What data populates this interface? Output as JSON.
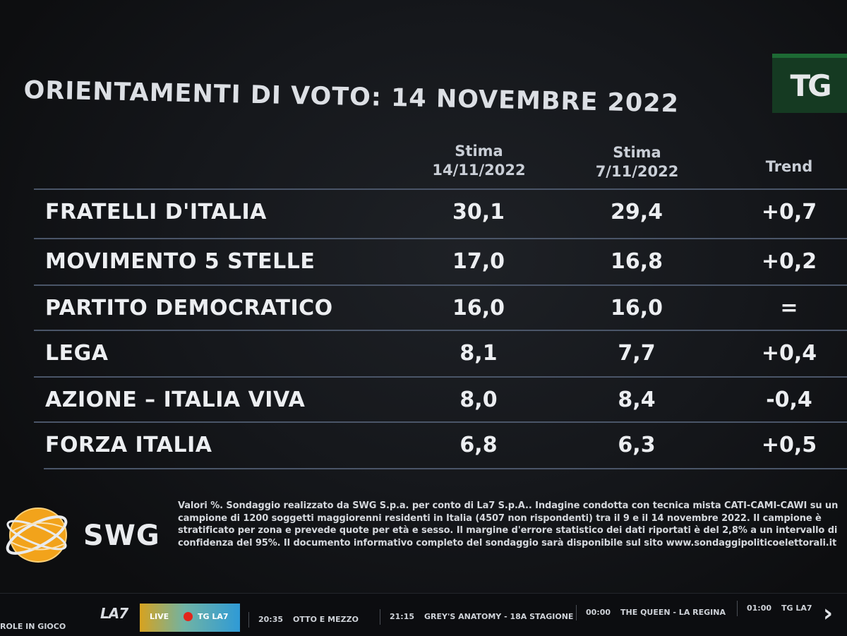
{
  "title": "ORIENTAMENTI DI VOTO: 14 NOVEMBRE 2022",
  "logo_text": "TG",
  "columns": {
    "current": {
      "line1": "Stima",
      "line2": "14/11/2022"
    },
    "previous": {
      "line1": "Stima",
      "line2": "7/11/2022"
    },
    "trend": "Trend"
  },
  "rows": [
    {
      "party": "FRATELLI D'ITALIA",
      "current": "30,1",
      "previous": "29,4",
      "trend": "+0,7"
    },
    {
      "party": "MOVIMENTO 5 STELLE",
      "current": "17,0",
      "previous": "16,8",
      "trend": "+0,2"
    },
    {
      "party": "PARTITO DEMOCRATICO",
      "current": "16,0",
      "previous": "16,0",
      "trend": "="
    },
    {
      "party": "LEGA",
      "current": "8,1",
      "previous": "7,7",
      "trend": "+0,4"
    },
    {
      "party": "AZIONE – ITALIA VIVA",
      "current": "8,0",
      "previous": "8,4",
      "trend": "-0,4"
    },
    {
      "party": "FORZA ITALIA",
      "current": "6,8",
      "previous": "6,3",
      "trend": "+0,5"
    }
  ],
  "source_logo_text": "SWG",
  "footnote": "Valori %. Sondaggio realizzato da SWG S.p.a. per conto di La7 S.p.A.. Indagine condotta con tecnica mista CATI-CAMI-CAWI su un campione di 1200 soggetti maggiorenni residenti in Italia (4507 non rispondenti) tra il 9 e il 14 novembre 2022. Il campione è stratificato per zona e prevede quote per età e sesso. Il margine d'errore statistico dei dati riportati è del 2,8% a un intervallo di confidenza del 95%. Il documento informativo completo del sondaggio sarà disponibile sul sito www.sondaggipoliticoelettorali.it",
  "ticker": {
    "prev_show": "ROLE IN GIOCO",
    "channel_logo": "LA7",
    "live_label": "LIVE",
    "live_channel": "TG LA7",
    "items": [
      {
        "time": "20:35",
        "show": "OTTO E MEZZO"
      },
      {
        "time": "21:15",
        "show": "GREY'S ANATOMY - 18A STAGIONE"
      },
      {
        "time": "00:00",
        "show": "THE QUEEN - LA REGINA"
      },
      {
        "time": "01:00",
        "show": "TG LA7"
      }
    ],
    "next_icon": "chevron-right-icon"
  },
  "colors": {
    "background": "#15171b",
    "logo_green": "#153a22",
    "live_red": "#e2261c",
    "swg_orange": "#f2a31b"
  }
}
